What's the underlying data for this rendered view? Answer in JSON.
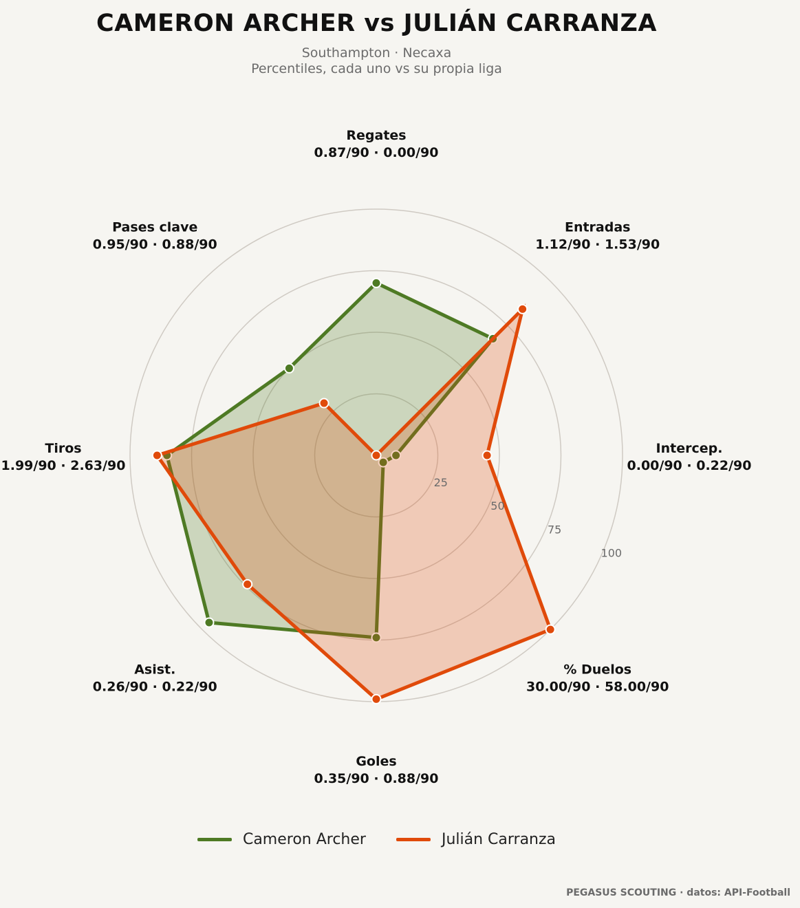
{
  "header": {
    "title": "CAMERON ARCHER  vs  JULIÁN CARRANZA",
    "subtitle_line1": "Southampton · Necaxa",
    "subtitle_line2": "Percentiles, cada uno vs su propia liga"
  },
  "footer": {
    "credit": "PEGASUS SCOUTING · datos: API-Football"
  },
  "chart_data": {
    "type": "radar",
    "title": "CAMERON ARCHER  vs  JULIÁN CARRANZA",
    "rlim": [
      0,
      100
    ],
    "rticks": [
      25,
      50,
      75,
      100
    ],
    "grid": true,
    "legend_position": "bottom",
    "axes": [
      {
        "name": "Regates",
        "value_label": "0.87/90 · 0.00/90"
      },
      {
        "name": "Entradas",
        "value_label": "1.12/90 · 1.53/90"
      },
      {
        "name": "Intercep.",
        "value_label": "0.00/90 · 0.22/90"
      },
      {
        "name": "% Duelos",
        "value_label": "30.00/90 · 58.00/90"
      },
      {
        "name": "Goles",
        "value_label": "0.35/90 · 0.88/90"
      },
      {
        "name": "Asist.",
        "value_label": "0.26/90 · 0.22/90"
      },
      {
        "name": "Tiros",
        "value_label": "1.99/90 · 2.63/90"
      },
      {
        "name": "Pases clave",
        "value_label": "0.95/90 · 0.88/90"
      }
    ],
    "series": [
      {
        "name": "Cameron Archer",
        "color": "#4e7a24",
        "values": [
          70,
          67,
          8,
          4,
          74,
          96,
          85,
          50
        ]
      },
      {
        "name": "Julián Carranza",
        "color": "#e04a0a",
        "values": [
          0,
          84,
          45,
          100,
          99,
          74,
          89,
          30
        ]
      }
    ]
  }
}
